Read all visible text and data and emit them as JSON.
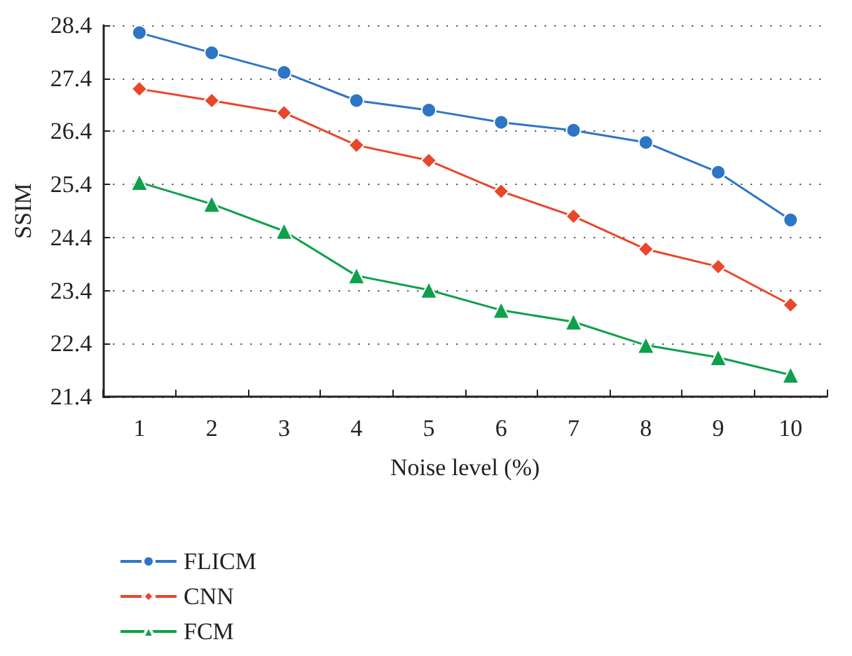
{
  "chart_data": {
    "type": "line",
    "xlabel": "Noise level (%)",
    "ylabel": "SSIM",
    "categories": [
      "1",
      "2",
      "3",
      "4",
      "5",
      "6",
      "7",
      "8",
      "9",
      "10"
    ],
    "ylim": [
      21.4,
      28.4
    ],
    "yticks": [
      21.4,
      22.4,
      23.4,
      24.4,
      25.4,
      26.4,
      27.4,
      28.4
    ],
    "grid": "y",
    "legend": "bottom left",
    "line_style": "solid",
    "series": [
      {
        "name": "FLICM",
        "color": "#2e75c6",
        "marker": "circle",
        "values": [
          28.26,
          27.88,
          27.51,
          26.98,
          26.8,
          26.57,
          26.42,
          26.19,
          25.63,
          24.73
        ]
      },
      {
        "name": "CNN",
        "color": "#e8472a",
        "marker": "diamond",
        "values": [
          27.2,
          26.98,
          26.75,
          26.14,
          25.85,
          25.27,
          24.8,
          24.18,
          23.85,
          23.13
        ]
      },
      {
        "name": "FCM",
        "color": "#0fa04b",
        "marker": "triangle",
        "values": [
          25.44,
          25.03,
          24.52,
          23.68,
          23.41,
          23.03,
          22.81,
          22.37,
          22.14,
          21.81
        ]
      }
    ]
  }
}
